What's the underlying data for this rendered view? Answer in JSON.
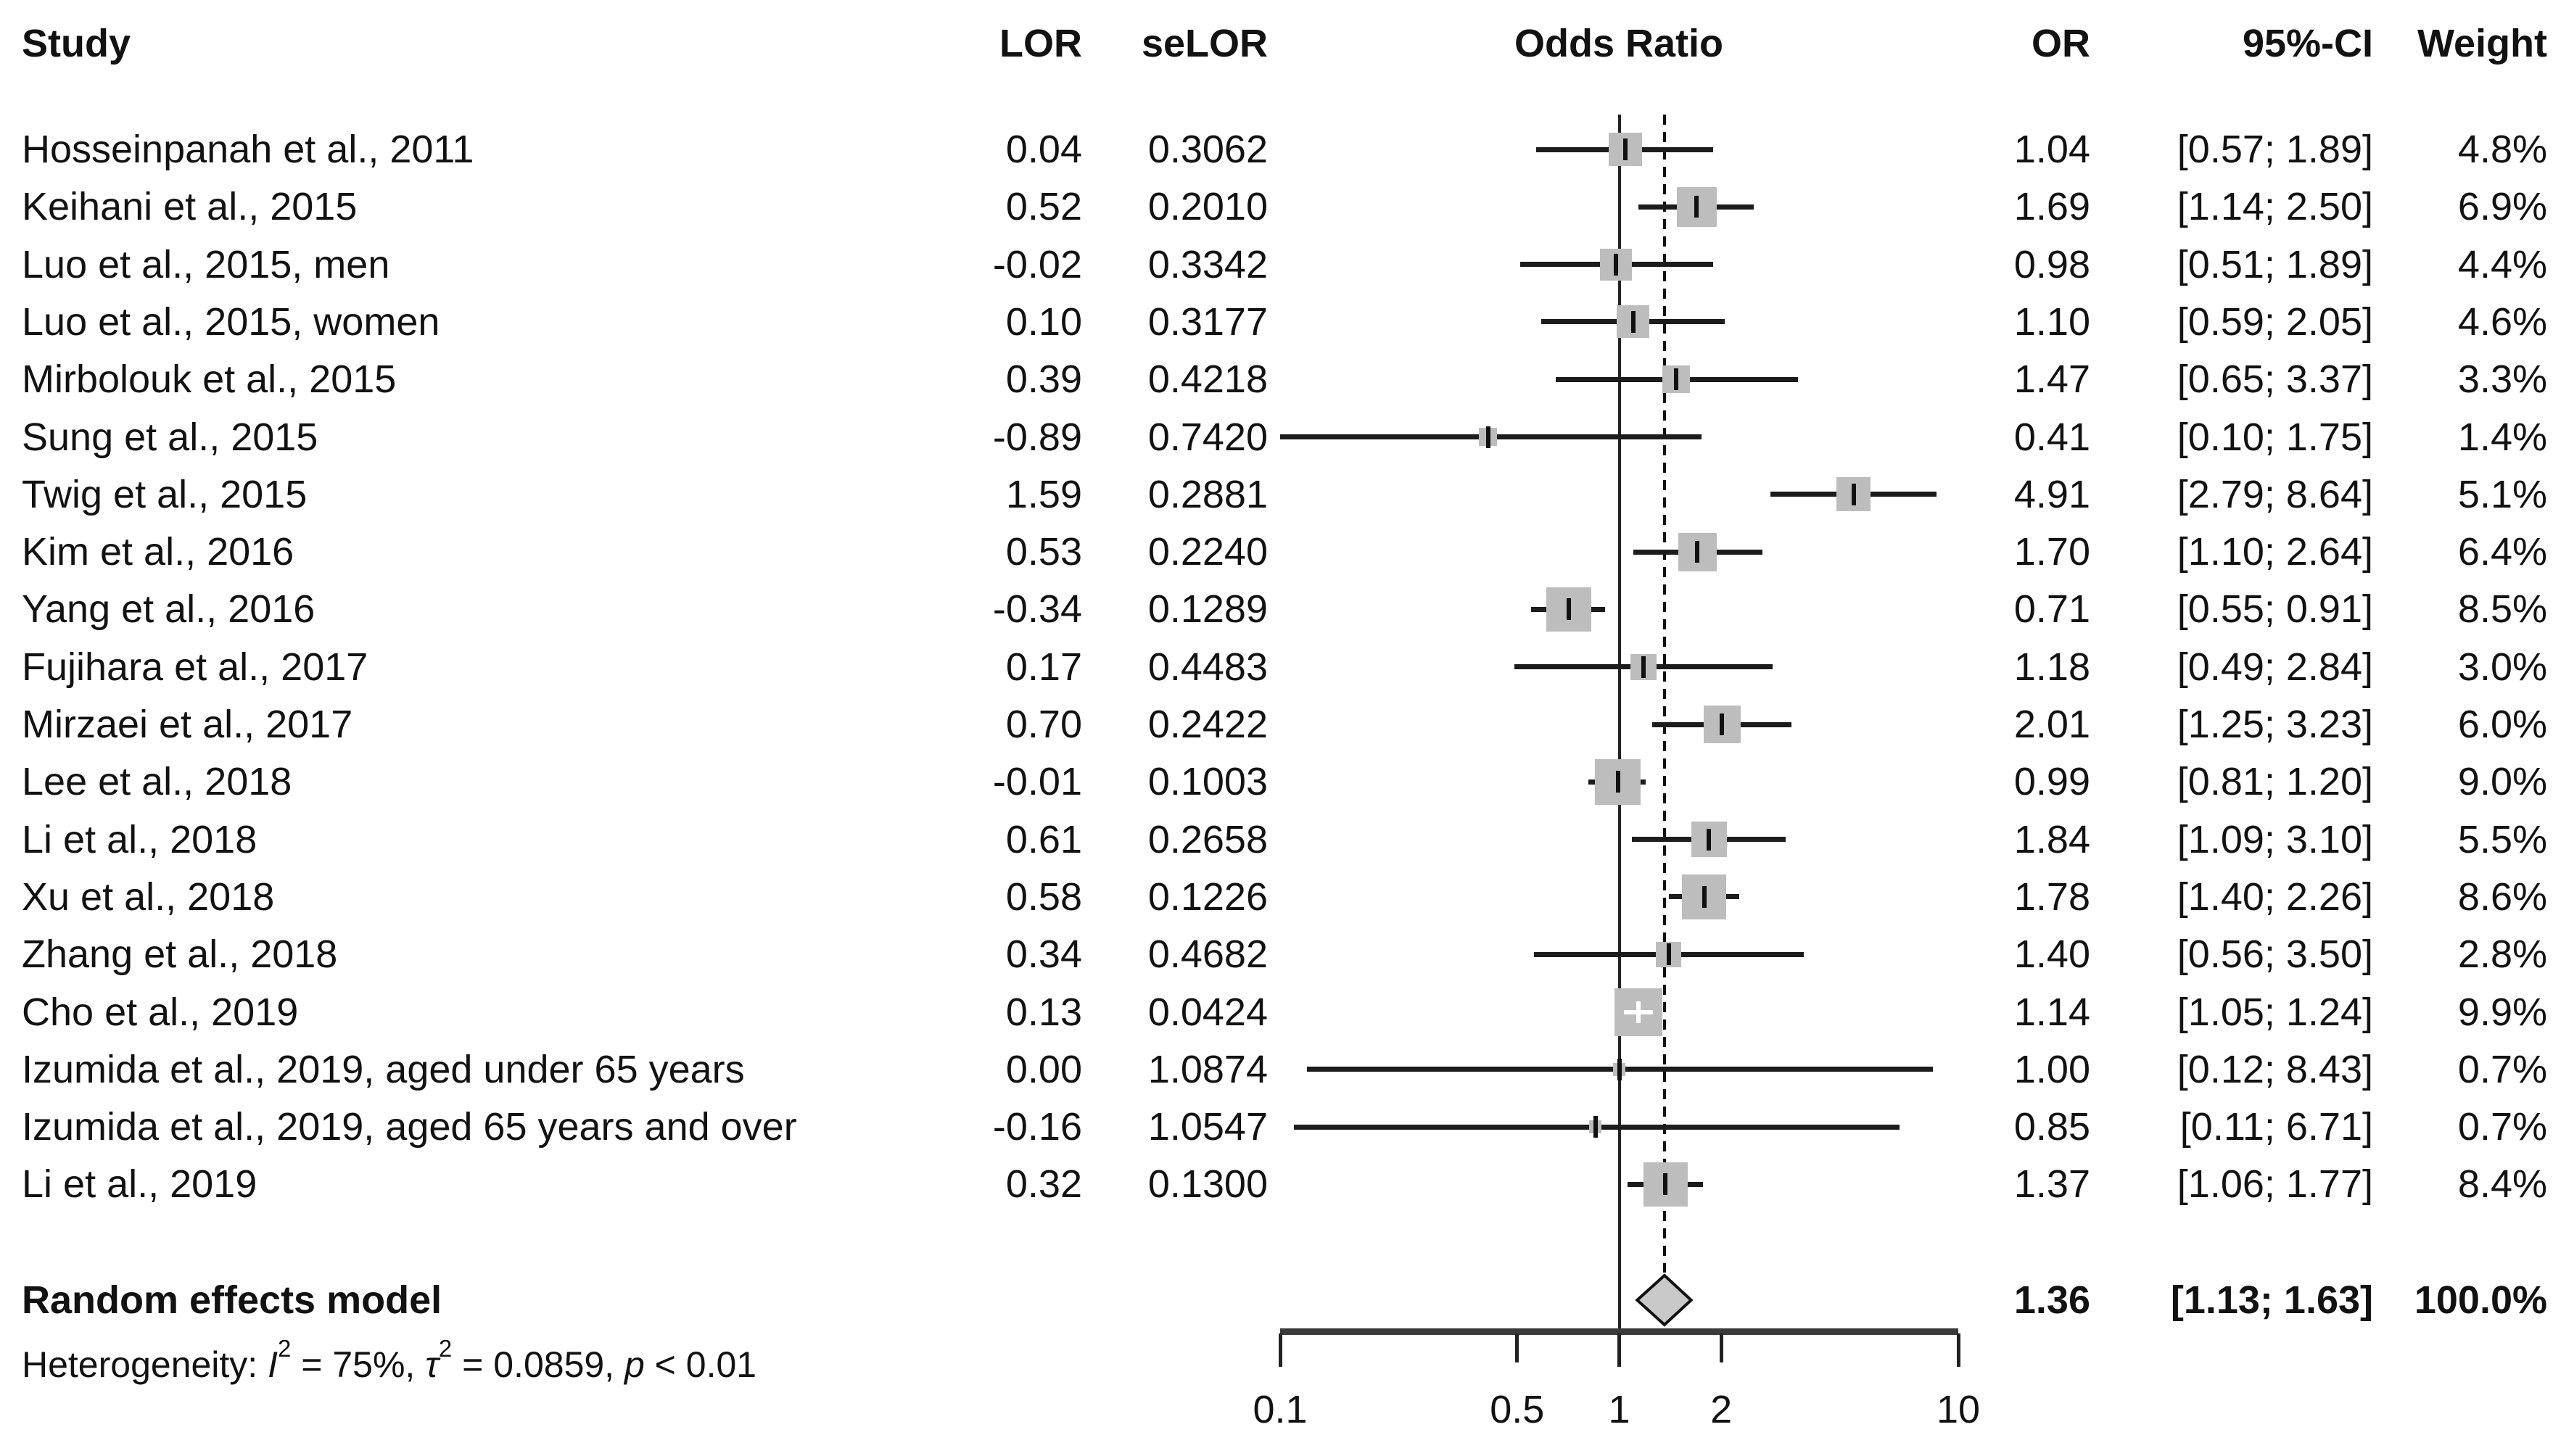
{
  "header": {
    "study": "Study",
    "lor": "LOR",
    "selor": "seLOR",
    "odds_ratio": "Odds Ratio",
    "or": "OR",
    "ci": "95%-CI",
    "weight": "Weight"
  },
  "colors": {
    "square": "#bdbdbd",
    "ci_line": "#1c1c1c",
    "diamond_fill": "#c9c9c9",
    "diamond_border": "#111111",
    "text": "#121212"
  },
  "chart_data": {
    "type": "forest",
    "x_scale": "log10",
    "x_range": [
      0.1,
      10
    ],
    "x_ticks": [
      0.1,
      0.5,
      1,
      2,
      10
    ],
    "x_tick_labels": [
      "0.1",
      "0.5",
      "1",
      "2",
      "10"
    ],
    "reference_line": 1,
    "pooled_effect_line": 1.36,
    "max_weight_percent": 9.9,
    "studies": [
      {
        "study": "Hosseinpanah et al., 2011",
        "lor": "0.04",
        "selor": "0.3062",
        "or": 1.04,
        "ci_low": 0.57,
        "ci_high": 1.89,
        "or_text": "1.04",
        "ci_text": "[0.57; 1.89]",
        "weight": 4.8,
        "weight_text": "4.8%"
      },
      {
        "study": "Keihani et al., 2015",
        "lor": "0.52",
        "selor": "0.2010",
        "or": 1.69,
        "ci_low": 1.14,
        "ci_high": 2.5,
        "or_text": "1.69",
        "ci_text": "[1.14; 2.50]",
        "weight": 6.9,
        "weight_text": "6.9%"
      },
      {
        "study": "Luo et al., 2015, men",
        "lor": "-0.02",
        "selor": "0.3342",
        "or": 0.98,
        "ci_low": 0.51,
        "ci_high": 1.89,
        "or_text": "0.98",
        "ci_text": "[0.51; 1.89]",
        "weight": 4.4,
        "weight_text": "4.4%"
      },
      {
        "study": "Luo et al., 2015, women",
        "lor": "0.10",
        "selor": "0.3177",
        "or": 1.1,
        "ci_low": 0.59,
        "ci_high": 2.05,
        "or_text": "1.10",
        "ci_text": "[0.59; 2.05]",
        "weight": 4.6,
        "weight_text": "4.6%"
      },
      {
        "study": "Mirbolouk et al., 2015",
        "lor": "0.39",
        "selor": "0.4218",
        "or": 1.47,
        "ci_low": 0.65,
        "ci_high": 3.37,
        "or_text": "1.47",
        "ci_text": "[0.65; 3.37]",
        "weight": 3.3,
        "weight_text": "3.3%"
      },
      {
        "study": "Sung et al., 2015",
        "lor": "-0.89",
        "selor": "0.7420",
        "or": 0.41,
        "ci_low": 0.1,
        "ci_high": 1.75,
        "or_text": "0.41",
        "ci_text": "[0.10; 1.75]",
        "weight": 1.4,
        "weight_text": "1.4%"
      },
      {
        "study": "Twig et al., 2015",
        "lor": "1.59",
        "selor": "0.2881",
        "or": 4.91,
        "ci_low": 2.79,
        "ci_high": 8.64,
        "or_text": "4.91",
        "ci_text": "[2.79; 8.64]",
        "weight": 5.1,
        "weight_text": "5.1%"
      },
      {
        "study": "Kim et al., 2016",
        "lor": "0.53",
        "selor": "0.2240",
        "or": 1.7,
        "ci_low": 1.1,
        "ci_high": 2.64,
        "or_text": "1.70",
        "ci_text": "[1.10; 2.64]",
        "weight": 6.4,
        "weight_text": "6.4%"
      },
      {
        "study": "Yang et al., 2016",
        "lor": "-0.34",
        "selor": "0.1289",
        "or": 0.71,
        "ci_low": 0.55,
        "ci_high": 0.91,
        "or_text": "0.71",
        "ci_text": "[0.55; 0.91]",
        "weight": 8.5,
        "weight_text": "8.5%"
      },
      {
        "study": "Fujihara et al., 2017",
        "lor": "0.17",
        "selor": "0.4483",
        "or": 1.18,
        "ci_low": 0.49,
        "ci_high": 2.84,
        "or_text": "1.18",
        "ci_text": "[0.49; 2.84]",
        "weight": 3.0,
        "weight_text": "3.0%"
      },
      {
        "study": "Mirzaei et al., 2017",
        "lor": "0.70",
        "selor": "0.2422",
        "or": 2.01,
        "ci_low": 1.25,
        "ci_high": 3.23,
        "or_text": "2.01",
        "ci_text": "[1.25; 3.23]",
        "weight": 6.0,
        "weight_text": "6.0%"
      },
      {
        "study": "Lee et al., 2018",
        "lor": "-0.01",
        "selor": "0.1003",
        "or": 0.99,
        "ci_low": 0.81,
        "ci_high": 1.2,
        "or_text": "0.99",
        "ci_text": "[0.81; 1.20]",
        "weight": 9.0,
        "weight_text": "9.0%"
      },
      {
        "study": "Li et al., 2018",
        "lor": "0.61",
        "selor": "0.2658",
        "or": 1.84,
        "ci_low": 1.09,
        "ci_high": 3.1,
        "or_text": "1.84",
        "ci_text": "[1.09; 3.10]",
        "weight": 5.5,
        "weight_text": "5.5%"
      },
      {
        "study": "Xu et al., 2018",
        "lor": "0.58",
        "selor": "0.1226",
        "or": 1.78,
        "ci_low": 1.4,
        "ci_high": 2.26,
        "or_text": "1.78",
        "ci_text": "[1.40; 2.26]",
        "weight": 8.6,
        "weight_text": "8.6%"
      },
      {
        "study": "Zhang et al., 2018",
        "lor": "0.34",
        "selor": "0.4682",
        "or": 1.4,
        "ci_low": 0.56,
        "ci_high": 3.5,
        "or_text": "1.40",
        "ci_text": "[0.56; 3.50]",
        "weight": 2.8,
        "weight_text": "2.8%"
      },
      {
        "study": "Cho et al., 2019",
        "lor": "0.13",
        "selor": "0.0424",
        "or": 1.14,
        "ci_low": 1.05,
        "ci_high": 1.24,
        "or_text": "1.14",
        "ci_text": "[1.05; 1.24]",
        "weight": 9.9,
        "weight_text": "9.9%"
      },
      {
        "study": "Izumida et al., 2019, aged under 65 years",
        "lor": "0.00",
        "selor": "1.0874",
        "or": 1.0,
        "ci_low": 0.12,
        "ci_high": 8.43,
        "or_text": "1.00",
        "ci_text": "[0.12; 8.43]",
        "weight": 0.7,
        "weight_text": "0.7%"
      },
      {
        "study": "Izumida et al., 2019, aged 65 years and over",
        "lor": "-0.16",
        "selor": "1.0547",
        "or": 0.85,
        "ci_low": 0.11,
        "ci_high": 6.71,
        "or_text": "0.85",
        "ci_text": "[0.11; 6.71]",
        "weight": 0.7,
        "weight_text": "0.7%"
      },
      {
        "study": "Li et al., 2019",
        "lor": "0.32",
        "selor": "0.1300",
        "or": 1.37,
        "ci_low": 1.06,
        "ci_high": 1.77,
        "or_text": "1.37",
        "ci_text": "[1.06; 1.77]",
        "weight": 8.4,
        "weight_text": "8.4%"
      }
    ],
    "summary": {
      "label": "Random effects model",
      "or": 1.36,
      "ci_low": 1.13,
      "ci_high": 1.63,
      "or_text": "1.36",
      "ci_text": "[1.13; 1.63]",
      "weight_text": "100.0%"
    },
    "heterogeneity_parts": [
      {
        "text": "Heterogeneity: "
      },
      {
        "text": "I",
        "italic": true
      },
      {
        "text": "2",
        "sup": true
      },
      {
        "text": " = 75%, "
      },
      {
        "text": "τ",
        "italic": true
      },
      {
        "text": "2",
        "sup": true
      },
      {
        "text": " = 0.0859, "
      },
      {
        "text": "p",
        "italic": true
      },
      {
        "text": " < 0.01"
      }
    ]
  }
}
